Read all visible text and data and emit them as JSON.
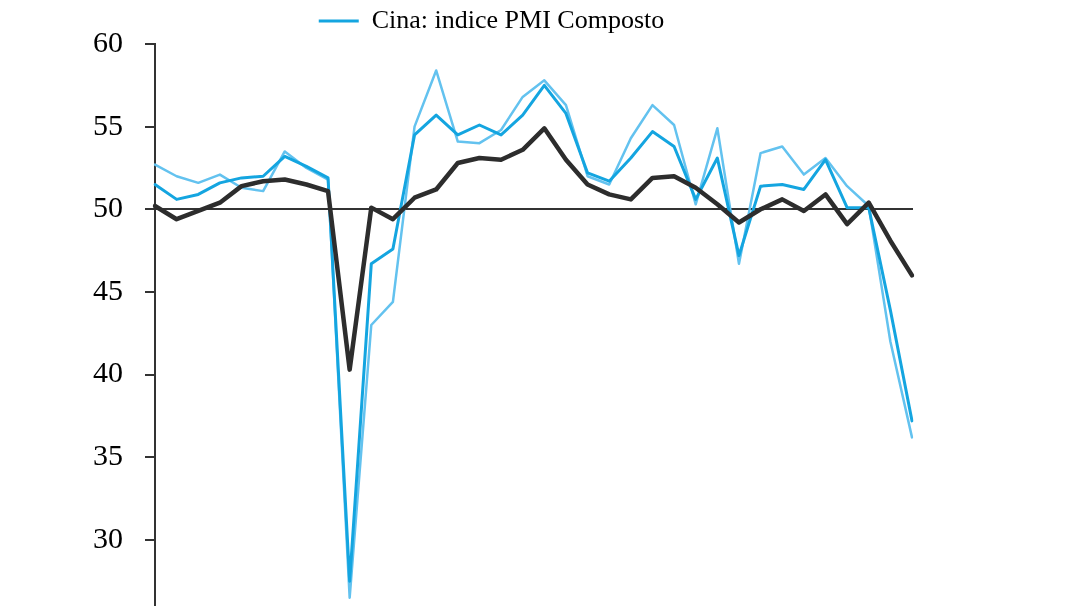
{
  "chart_data": {
    "type": "line",
    "categories": [
      null,
      null,
      null,
      null,
      null,
      null,
      null,
      null,
      null,
      null,
      null,
      null,
      null,
      null,
      null,
      null,
      null,
      null,
      null,
      null,
      null,
      null,
      null,
      null,
      null,
      null,
      null,
      null,
      null,
      null,
      null,
      null,
      null,
      null,
      null,
      null
    ],
    "series": [
      {
        "color": "#2d2d2d",
        "values": [
          50.2,
          49.4,
          49.9,
          50.4,
          51.4,
          51.7,
          51.8,
          51.5,
          51.1,
          40.3,
          50.1,
          49.4,
          50.7,
          51.2,
          52.8,
          53.1,
          53.0,
          53.6,
          54.9,
          53.0,
          51.5,
          50.9,
          50.6,
          51.9,
          52.0,
          51.3,
          50.3,
          49.2,
          50.0,
          50.6,
          49.9,
          50.9,
          49.1,
          50.4,
          48.1,
          46.0
        ]
      },
      {
        "name": "Cina: indice PMI Composto",
        "color": "#14a5e0",
        "values": [
          51.5,
          50.6,
          50.9,
          51.6,
          51.9,
          52.0,
          53.2,
          52.6,
          51.9,
          27.5,
          46.7,
          47.6,
          54.5,
          55.7,
          54.5,
          55.1,
          54.5,
          55.7,
          57.5,
          55.8,
          52.2,
          51.7,
          53.1,
          54.7,
          53.8,
          50.6,
          53.1,
          47.2,
          51.4,
          51.5,
          51.2,
          53.0,
          50.1,
          50.1,
          43.9,
          37.2
        ]
      },
      {
        "color": "#63c2ef",
        "values": [
          52.7,
          52.0,
          51.6,
          52.1,
          51.3,
          51.1,
          53.5,
          52.5,
          51.8,
          26.5,
          43.0,
          44.4,
          55.0,
          58.4,
          54.1,
          54.0,
          54.8,
          56.8,
          57.8,
          56.3,
          52.0,
          51.5,
          54.3,
          56.3,
          55.1,
          50.3,
          54.9,
          46.7,
          53.4,
          53.8,
          52.1,
          53.1,
          51.4,
          50.2,
          42.0,
          36.2
        ]
      }
    ],
    "ylim": [
      26,
      60
    ],
    "yticks": [
      30,
      35,
      40,
      45,
      50,
      55,
      60
    ],
    "ref_lines": [
      {
        "axis": "y",
        "value": 50,
        "color": "#333333"
      }
    ],
    "legend": "top",
    "tick_labels": "y",
    "marker": "none",
    "line_style": "solid"
  }
}
